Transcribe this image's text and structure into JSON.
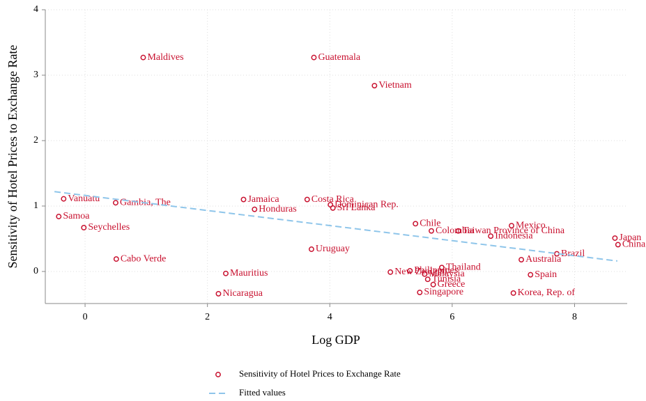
{
  "chart_data": {
    "type": "scatter",
    "x_label": "Log GDP",
    "y_label": "Sensitivity of Hotel Prices to Exchange Rate",
    "xlim": [
      -0.65,
      8.9
    ],
    "ylim": [
      -0.49,
      4
    ],
    "xticks": [
      0,
      2,
      4,
      6,
      8
    ],
    "yticks": [
      0,
      1,
      2,
      3,
      4
    ],
    "grid": true,
    "legend": "bottom",
    "series": [
      {
        "name": "Sensitivity of Hotel Prices to Exchange Rate",
        "color": "#c8102e",
        "labels": [
          "Maldives",
          "Guatemala",
          "Vietnam",
          "Vanuatu",
          "Gambia, The",
          "Samoa",
          "Seychelles",
          "Cabo Verde",
          "Jamaica",
          "Honduras",
          "Costa Rica",
          "Dominican Rep.",
          "Sri Lanka",
          "Uruguay",
          "Mauritius",
          "Nicaragua",
          "Chile",
          "Colombia",
          "Taiwan Province of China",
          "Mexico",
          "Indonesia",
          "Brazil",
          "Australia",
          "Spain",
          "Korea, Rep. of",
          "Thailand",
          "New Zealand",
          "Philippines",
          "Malaysia",
          "Tunisia",
          "Greece",
          "Singapore",
          "Japan",
          "China"
        ],
        "x": [
          0.95,
          3.74,
          4.73,
          -0.35,
          0.5,
          -0.43,
          -0.02,
          0.51,
          2.59,
          2.77,
          3.63,
          4.01,
          4.05,
          3.7,
          2.3,
          2.18,
          5.4,
          5.66,
          6.1,
          6.97,
          6.63,
          7.71,
          7.13,
          7.28,
          7.0,
          5.83,
          4.99,
          5.31,
          5.55,
          5.6,
          5.69,
          5.47,
          8.66,
          8.71
        ],
        "values": [
          3.27,
          3.27,
          2.84,
          1.11,
          1.05,
          0.84,
          0.67,
          0.19,
          1.1,
          0.95,
          1.1,
          1.02,
          0.97,
          0.34,
          -0.03,
          -0.34,
          0.73,
          0.62,
          0.62,
          0.7,
          0.54,
          0.27,
          0.18,
          -0.05,
          -0.33,
          0.06,
          -0.01,
          0.01,
          -0.04,
          -0.12,
          -0.2,
          -0.32,
          0.51,
          0.41
        ]
      },
      {
        "name": "Fitted values",
        "color": "#8ec5ea",
        "type": "line",
        "x": [
          -0.5,
          8.7
        ],
        "values": [
          1.22,
          0.16
        ]
      }
    ]
  }
}
